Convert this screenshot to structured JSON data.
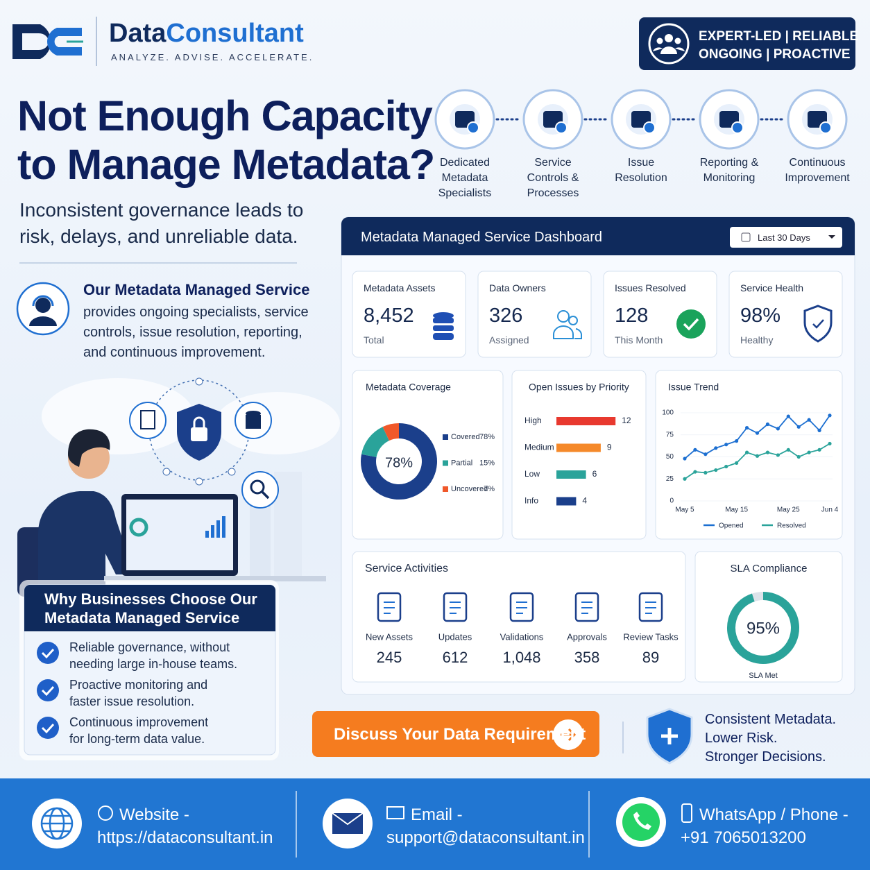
{
  "header": {
    "brand": [
      "Data",
      "Consultant"
    ],
    "tagline": "ANALYZE. ADVISE. ACCELERATE.",
    "badge": [
      "EXPERT-LED | RELIABLE",
      "ONGOING | PROACTIVE"
    ]
  },
  "hero": {
    "title": [
      "Not Enough Capacity",
      "to Manage Metadata?"
    ],
    "subtitle": [
      "Inconsistent governance leads to",
      "risk, delays, and unreliable data."
    ]
  },
  "steps": [
    [
      "Dedicated",
      "Metadata",
      "Specialists"
    ],
    [
      "Service",
      "Controls &",
      "Processes"
    ],
    [
      "Issue",
      "Resolution"
    ],
    [
      "Reporting &",
      "Monitoring"
    ],
    [
      "Continuous",
      "Improvement"
    ]
  ],
  "service": {
    "title": "Our Metadata Managed Service",
    "text": [
      "provides ongoing specialists, service",
      "controls, issue resolution, reporting,",
      "and continuous improvement."
    ]
  },
  "why": {
    "title": [
      "Why Businesses Choose Our",
      "Metadata Managed Service"
    ],
    "items": [
      [
        "Reliable governance, without",
        "needing large in-house teams."
      ],
      [
        "Proactive monitoring and",
        "faster issue resolution."
      ],
      [
        "Continuous improvement",
        "for long-term data value."
      ]
    ]
  },
  "dashboard": {
    "title": "Metadata Managed Service Dashboard",
    "filter": "Last 30 Days",
    "kpis": [
      {
        "label": "Metadata Assets",
        "value": "8,452",
        "note": "Total"
      },
      {
        "label": "Data Owners",
        "value": "326",
        "note": "Assigned"
      },
      {
        "label": "Issues Resolved",
        "value": "128",
        "note": "This Month"
      },
      {
        "label": "Service Health",
        "value": "98%",
        "note": "Healthy"
      }
    ],
    "activities": {
      "title": "Service Activities",
      "items": [
        {
          "label": "New Assets",
          "value": "245"
        },
        {
          "label": "Updates",
          "value": "612"
        },
        {
          "label": "Validations",
          "value": "1,048"
        },
        {
          "label": "Approvals",
          "value": "358"
        },
        {
          "label": "Review Tasks",
          "value": "89"
        }
      ]
    }
  },
  "chart_data": [
    {
      "type": "donut",
      "title": "Metadata Coverage",
      "categories": [
        "Covered",
        "Partial",
        "Uncovered"
      ],
      "values": [
        78,
        15,
        7
      ],
      "value_labels": [
        "78%",
        "15%",
        "7%"
      ],
      "colors": [
        "#1b3f8b",
        "#2aa39a",
        "#f0582a"
      ]
    },
    {
      "type": "hbar",
      "title": "Open Issues by Priority",
      "categories": [
        "High",
        "Medium",
        "Low",
        "Info"
      ],
      "values": [
        12,
        9,
        6,
        4
      ],
      "colors": [
        "#e8392f",
        "#f5892a",
        "#2aa39a",
        "#1b3f8b"
      ]
    },
    {
      "type": "line",
      "title": "Issue Trend",
      "categories": [
        "May 5",
        null,
        null,
        null,
        null,
        "May 15",
        null,
        null,
        null,
        null,
        "May 25",
        null,
        null,
        null,
        "Jun 4"
      ],
      "ylim": [
        0,
        100
      ],
      "yticks": [
        0,
        25,
        50,
        75,
        100
      ],
      "series": [
        {
          "name": "Opened",
          "color": "#1c6fd1",
          "values": [
            48,
            58,
            53,
            60,
            64,
            68,
            83,
            77,
            87,
            82,
            96,
            84,
            92,
            80,
            97
          ]
        },
        {
          "name": "Resolved",
          "color": "#2aa39a",
          "values": [
            25,
            33,
            32,
            35,
            39,
            43,
            55,
            51,
            55,
            52,
            58,
            50,
            55,
            58,
            65
          ]
        }
      ]
    },
    {
      "type": "gauge",
      "title": "SLA Compliance",
      "values": [
        95
      ],
      "value_labels": [
        "95%"
      ],
      "caption": "SLA Met",
      "color": "#2aa39a"
    }
  ],
  "cta": "Discuss Your Data Requirement",
  "slogan": [
    "Consistent Metadata.",
    "Lower Risk.",
    "Stronger Decisions."
  ],
  "footer": [
    {
      "label": "Website -",
      "value": "https://dataconsultant.in"
    },
    {
      "label": "Email -",
      "value": "support@dataconsultant.in"
    },
    {
      "label": "WhatsApp / Phone -",
      "value": "+91 7065013200"
    }
  ]
}
